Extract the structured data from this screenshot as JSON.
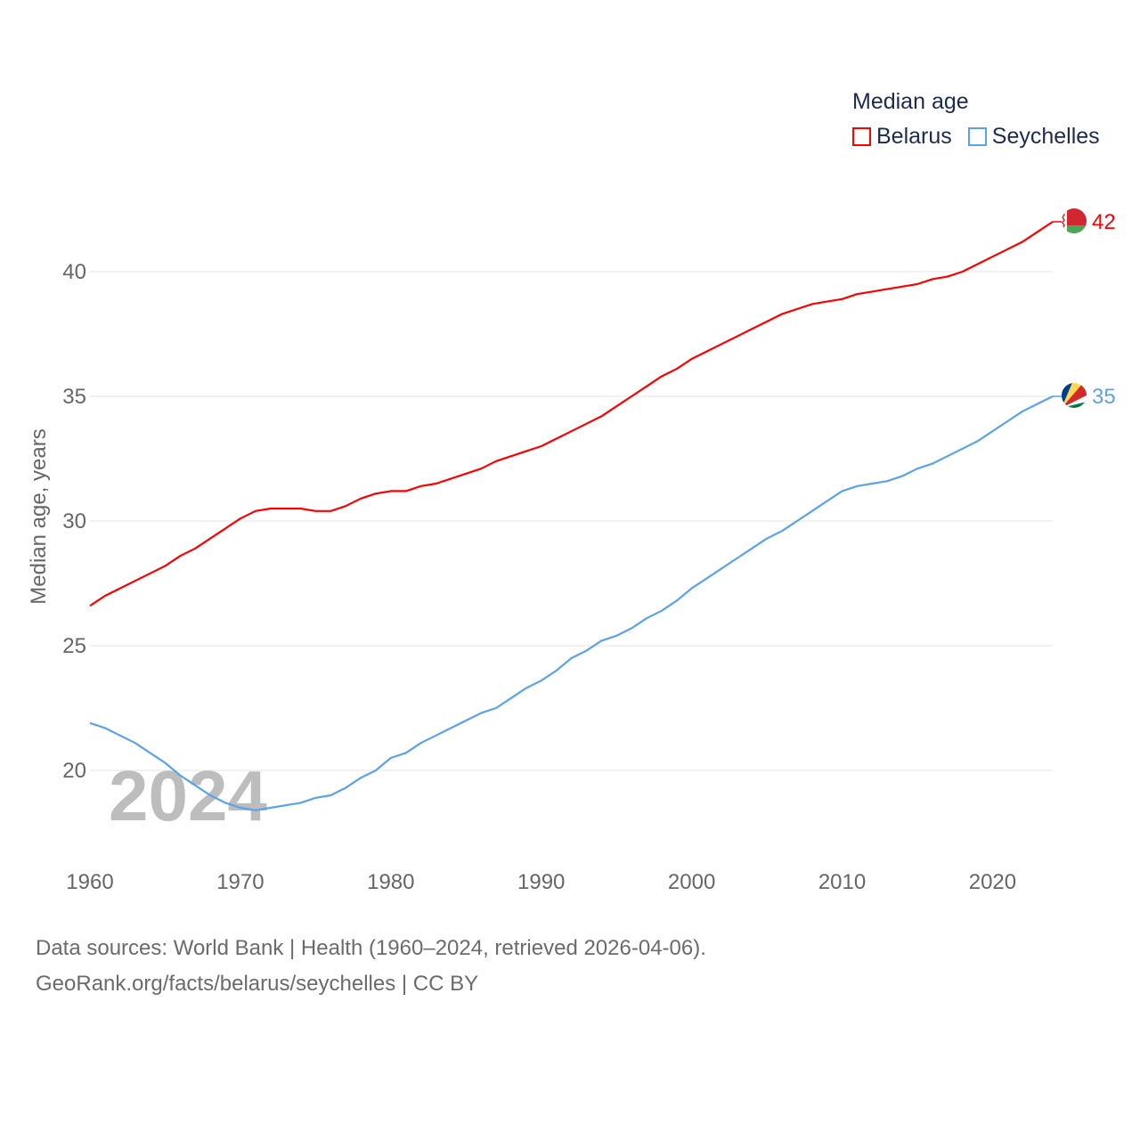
{
  "chart_data": {
    "type": "line",
    "title": "Median age",
    "ylabel": "Median age, years",
    "xlabel": "",
    "xlim": [
      1960,
      2024
    ],
    "ylim": [
      17.5,
      42.5
    ],
    "x_ticks": [
      1960,
      1970,
      1980,
      1990,
      2000,
      2010,
      2020
    ],
    "y_ticks": [
      20,
      25,
      30,
      35,
      40
    ],
    "grid": true,
    "legend_position": "top-right",
    "year_label": "2024",
    "x": [
      1960,
      1961,
      1962,
      1963,
      1964,
      1965,
      1966,
      1967,
      1968,
      1969,
      1970,
      1971,
      1972,
      1973,
      1974,
      1975,
      1976,
      1977,
      1978,
      1979,
      1980,
      1981,
      1982,
      1983,
      1984,
      1985,
      1986,
      1987,
      1988,
      1989,
      1990,
      1991,
      1992,
      1993,
      1994,
      1995,
      1996,
      1997,
      1998,
      1999,
      2000,
      2001,
      2002,
      2003,
      2004,
      2005,
      2006,
      2007,
      2008,
      2009,
      2010,
      2011,
      2012,
      2013,
      2014,
      2015,
      2016,
      2017,
      2018,
      2019,
      2020,
      2021,
      2022,
      2023,
      2024
    ],
    "series": [
      {
        "name": "Belarus",
        "color": "#ff0000",
        "end_label": "42",
        "values": [
          26.6,
          27.0,
          27.3,
          27.6,
          27.9,
          28.2,
          28.6,
          28.9,
          29.3,
          29.7,
          30.1,
          30.4,
          30.5,
          30.5,
          30.5,
          30.4,
          30.4,
          30.6,
          30.9,
          31.1,
          31.2,
          31.2,
          31.4,
          31.5,
          31.7,
          31.9,
          32.1,
          32.4,
          32.6,
          32.8,
          33.0,
          33.3,
          33.6,
          33.9,
          34.2,
          34.6,
          35.0,
          35.4,
          35.8,
          36.1,
          36.5,
          36.8,
          37.1,
          37.4,
          37.7,
          38.0,
          38.3,
          38.5,
          38.7,
          38.8,
          38.9,
          39.1,
          39.2,
          39.3,
          39.4,
          39.5,
          39.7,
          39.8,
          40.0,
          40.3,
          40.6,
          40.9,
          41.2,
          41.6,
          42.0
        ]
      },
      {
        "name": "Seychelles",
        "color": "#5aa3ec",
        "end_label": "35",
        "values": [
          21.9,
          21.7,
          21.4,
          21.1,
          20.7,
          20.3,
          19.8,
          19.4,
          19.0,
          18.7,
          18.5,
          18.4,
          18.5,
          18.6,
          18.7,
          18.9,
          19.0,
          19.3,
          19.7,
          20.0,
          20.5,
          20.7,
          21.1,
          21.4,
          21.7,
          22.0,
          22.3,
          22.5,
          22.9,
          23.3,
          23.6,
          24.0,
          24.5,
          24.8,
          25.2,
          25.4,
          25.7,
          26.1,
          26.4,
          26.8,
          27.3,
          27.7,
          28.1,
          28.5,
          28.9,
          29.3,
          29.6,
          30.0,
          30.4,
          30.8,
          31.2,
          31.4,
          31.5,
          31.6,
          31.8,
          32.1,
          32.3,
          32.6,
          32.9,
          33.2,
          33.6,
          34.0,
          34.4,
          34.7,
          35.0
        ]
      }
    ]
  },
  "footer": {
    "line1": "Data sources: World Bank | Health (1960–2024, retrieved 2026-04-06).",
    "line2": "GeoRank.org/facts/belarus/seychelles | CC BY"
  }
}
